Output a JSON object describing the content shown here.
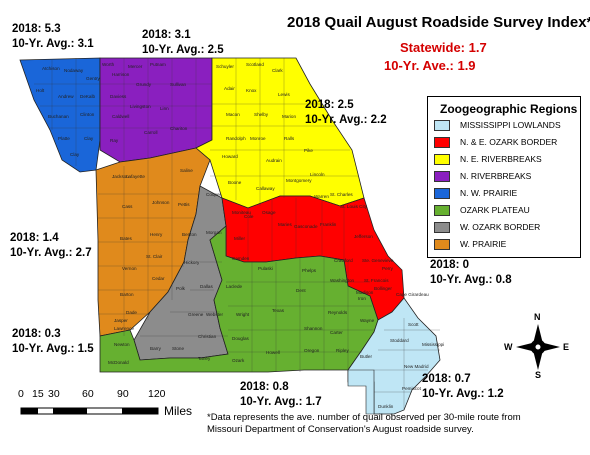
{
  "title": "2018 Quail August Roadside Survey Index*",
  "statewide": "Statewide: 1.7",
  "statewide_avg": "10-Yr. Ave.: 1.9",
  "annotations": [
    {
      "line1": "2018: 5.3",
      "line2": "10-Yr. Avg.: 3.1"
    },
    {
      "line1": "2018: 3.1",
      "line2": "10-Yr. Avg.: 2.5"
    },
    {
      "line1": "2018: 2.5",
      "line2": "10-Yr. Avg.: 2.2"
    },
    {
      "line1": "2018: 1.4",
      "line2": "10-Yr. Avg.: 2.7"
    },
    {
      "line1": "2018: 0",
      "line2": "10-Yr. Avg.: 0.8"
    },
    {
      "line1": "2018: 0.3",
      "line2": "10-Yr. Avg.: 1.5"
    },
    {
      "line1": "2018: 0.8",
      "line2": "10-Yr. Avg.: 1.7"
    },
    {
      "line1": "2018: 0.7",
      "line2": "10-Yr. Avg.: 1.2"
    }
  ],
  "legend": {
    "title": "Zoogeographic Regions",
    "items": [
      {
        "label": "MISSISSIPPI LOWLANDS",
        "color": "#bfe6f5"
      },
      {
        "label": "N. & E. OZARK BORDER",
        "color": "#ff0000"
      },
      {
        "label": "N. E. RIVERBREAKS",
        "color": "#ffff00"
      },
      {
        "label": "N. RIVERBREAKS",
        "color": "#8a1fbf"
      },
      {
        "label": "N. W. PRAIRIE",
        "color": "#1a66d9"
      },
      {
        "label": "OZARK PLATEAU",
        "color": "#66b030"
      },
      {
        "label": "W. OZARK BORDER",
        "color": "#8c8c8c"
      },
      {
        "label": "W. PRAIRIE",
        "color": "#e08a1c"
      }
    ]
  },
  "note": {
    "line1": "*Data represents the ave. number of quail observed per 30-mile route from",
    "line2": "Missouri Department of Conservation's August roadside survey."
  },
  "scale": {
    "ticks": [
      "0",
      "15",
      "30",
      "60",
      "90",
      "120"
    ],
    "unit": "Miles"
  },
  "compass": {
    "n": "N",
    "s": "S",
    "e": "E",
    "w": "W"
  },
  "counties": {
    "nw": [
      "Atchison",
      "Nodaway",
      "Holt",
      "Andrew",
      "Buchanan",
      "DeKalb",
      "Gentry",
      "Worth",
      "Platte",
      "Clinton",
      "Clay",
      "Caldwell",
      "Ray",
      "Daviess",
      "Harrison",
      "Clay",
      "Jackson"
    ],
    "n": [
      "Mercer",
      "Putnam",
      "Grundy",
      "Sullivan",
      "Livingston",
      "Linn",
      "Chariton",
      "Carroll"
    ],
    "ne": [
      "Schuyler",
      "Scotland",
      "Clark",
      "Adair",
      "Knox",
      "Lewis",
      "Macon",
      "Shelby",
      "Marion",
      "Randolph",
      "Monroe",
      "Ralls",
      "Audrain",
      "Pike",
      "Howard",
      "Boone",
      "Callaway",
      "Montgomery",
      "Lincoln",
      "Warren",
      "St. Charles"
    ],
    "w": [
      "Lafayette",
      "Saline",
      "Cass",
      "Johnson",
      "Pettis",
      "Bates",
      "Henry",
      "Vernon",
      "St. Clair",
      "Cedar",
      "Barton",
      "Dade",
      "Jasper",
      "Lawrence",
      "Newton",
      "McDonald"
    ],
    "wob": [
      "Cooper",
      "Benton",
      "Morgan",
      "Hickory",
      "Polk",
      "Dallas",
      "Greene",
      "Webster",
      "Christian",
      "Barry",
      "Stone",
      "Taney"
    ],
    "ozark": [
      "Moniteau",
      "Miller",
      "Camden",
      "Laclede",
      "Pulaski",
      "Phelps",
      "Crawford",
      "Washington",
      "Dent",
      "Texas",
      "Wright",
      "Douglas",
      "Ozark",
      "Howell",
      "Shannon",
      "Oregon",
      "Ripley",
      "Carter",
      "Reynolds",
      "Iron",
      "Wayne",
      "Madison"
    ],
    "red": [
      "Cole",
      "Osage",
      "Maries",
      "Gasconade",
      "Franklin",
      "St. Louis City",
      "Jefferson",
      "Ste. Genevieve",
      "Perry",
      "Cape Girardeau",
      "Bollinger",
      "St. Francois"
    ],
    "low": [
      "Scott",
      "Stoddard",
      "Mississippi",
      "Butler",
      "New Madrid",
      "Pemiscot",
      "Dunklin"
    ]
  }
}
